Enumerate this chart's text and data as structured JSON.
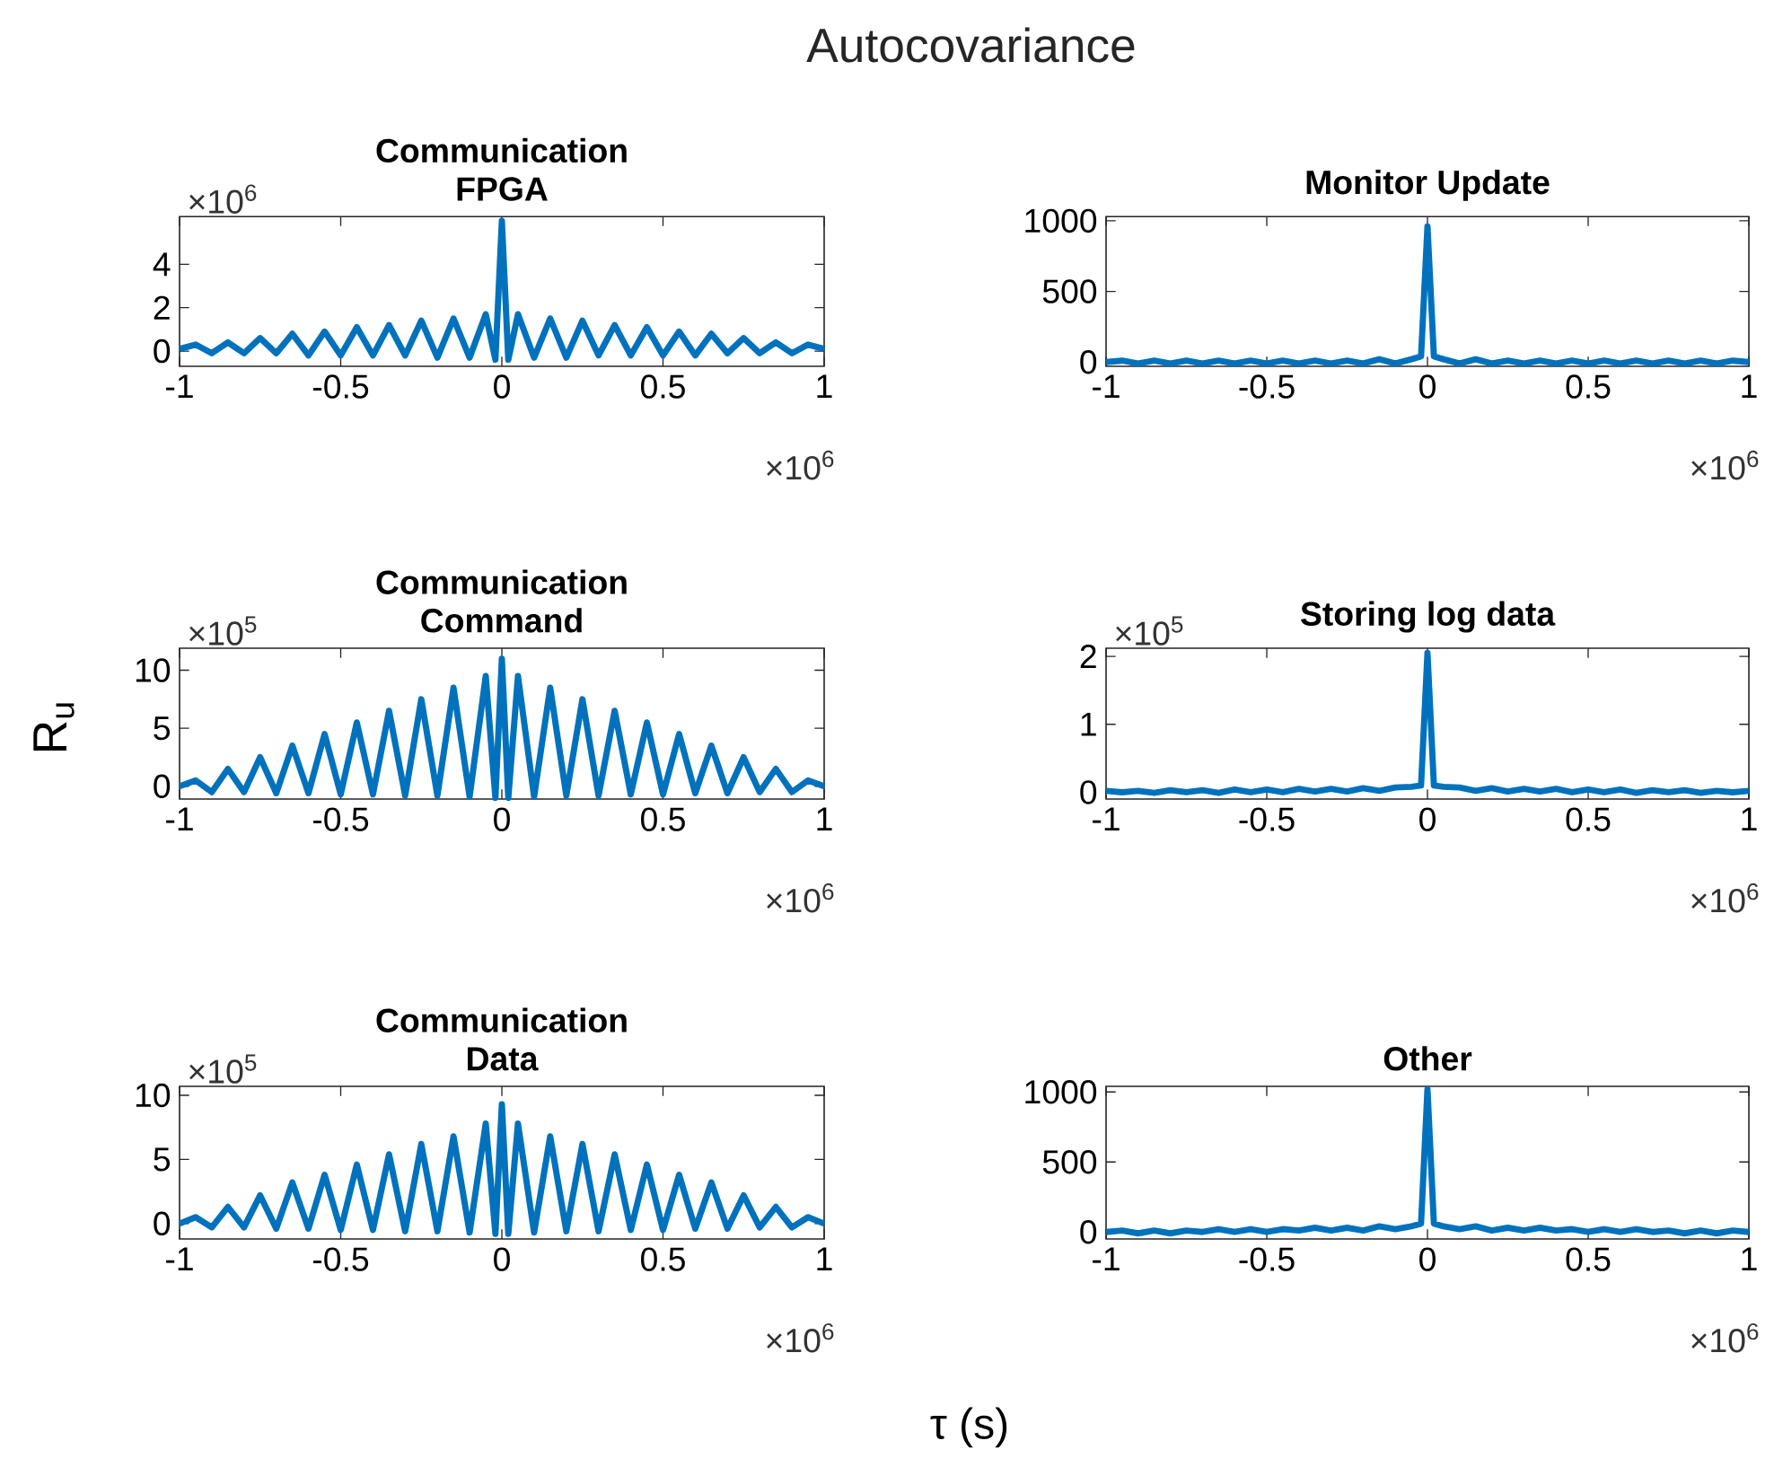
{
  "chart_data": [
    {
      "type": "line",
      "title": "Communication FPGA",
      "color": "#0072bd",
      "xlim": [
        -1,
        1
      ],
      "ylim": [
        -0.7,
        6.2
      ],
      "xticks": [
        -1,
        -0.5,
        0,
        0.5,
        1
      ],
      "yticks": [
        0,
        2,
        4
      ],
      "annotations": [
        "×10$^{6}$",
        "×10$^{6}$",
        "Autocovariance"
      ],
      "x": [
        -1,
        -0.95,
        -0.9,
        -0.85,
        -0.8,
        -0.75,
        -0.7,
        -0.65,
        -0.6,
        -0.55,
        -0.5,
        -0.45,
        -0.4,
        -0.35,
        -0.3,
        -0.25,
        -0.2,
        -0.15,
        -0.1,
        -0.05,
        -0.02,
        0,
        0.02,
        0.05,
        0.1,
        0.15,
        0.2,
        0.25,
        0.3,
        0.35,
        0.4,
        0.45,
        0.5,
        0.55,
        0.6,
        0.65,
        0.7,
        0.75,
        0.8,
        0.85,
        0.9,
        0.95,
        1
      ],
      "values": [
        0.1,
        0.3,
        -0.1,
        0.4,
        -0.1,
        0.6,
        -0.1,
        0.8,
        -0.2,
        0.9,
        -0.2,
        1.1,
        -0.2,
        1.2,
        -0.2,
        1.4,
        -0.3,
        1.5,
        -0.3,
        1.7,
        -0.4,
        6.0,
        -0.4,
        1.7,
        -0.3,
        1.5,
        -0.3,
        1.4,
        -0.2,
        1.2,
        -0.2,
        1.1,
        -0.2,
        0.9,
        -0.2,
        0.8,
        -0.1,
        0.6,
        -0.1,
        0.4,
        -0.1,
        0.3,
        0.1
      ]
    },
    {
      "type": "line",
      "title": "Monitor Update",
      "color": "#0072bd",
      "xlim": [
        -1,
        1
      ],
      "ylim": [
        -30,
        1030
      ],
      "xticks": [
        -1,
        -0.5,
        0,
        0.5,
        1
      ],
      "yticks": [
        0,
        500,
        1000
      ],
      "annotations": [
        "×10$^{6}$"
      ],
      "x": [
        -1,
        -0.95,
        -0.9,
        -0.85,
        -0.8,
        -0.75,
        -0.7,
        -0.65,
        -0.6,
        -0.55,
        -0.5,
        -0.45,
        -0.4,
        -0.35,
        -0.3,
        -0.25,
        -0.2,
        -0.15,
        -0.1,
        -0.05,
        -0.02,
        0,
        0.02,
        0.05,
        0.1,
        0.15,
        0.2,
        0.25,
        0.3,
        0.35,
        0.4,
        0.45,
        0.5,
        0.55,
        0.6,
        0.65,
        0.7,
        0.75,
        0.8,
        0.85,
        0.9,
        0.95,
        1
      ],
      "values": [
        0,
        10,
        -10,
        10,
        -10,
        10,
        -10,
        10,
        -10,
        10,
        -10,
        10,
        -10,
        10,
        -10,
        10,
        -10,
        20,
        -10,
        20,
        40,
        960,
        40,
        20,
        -10,
        20,
        -10,
        10,
        -10,
        10,
        -10,
        10,
        -10,
        10,
        -10,
        10,
        -10,
        10,
        -10,
        10,
        -10,
        10,
        0
      ]
    },
    {
      "type": "line",
      "title": "Communication Command",
      "ylabel": "R$_{u}$",
      "color": "#0072bd",
      "xlim": [
        -1,
        1
      ],
      "ylim": [
        -1.1,
        11.9
      ],
      "xticks": [
        -1,
        -0.5,
        0,
        0.5,
        1
      ],
      "yticks": [
        0,
        5,
        10
      ],
      "annotations": [
        "×10$^{5}$",
        "×10$^{6}$"
      ],
      "x": [
        -1,
        -0.95,
        -0.9,
        -0.85,
        -0.8,
        -0.75,
        -0.7,
        -0.65,
        -0.6,
        -0.55,
        -0.5,
        -0.45,
        -0.4,
        -0.35,
        -0.3,
        -0.25,
        -0.2,
        -0.15,
        -0.1,
        -0.05,
        -0.02,
        0,
        0.02,
        0.05,
        0.1,
        0.15,
        0.2,
        0.25,
        0.3,
        0.35,
        0.4,
        0.45,
        0.5,
        0.55,
        0.6,
        0.65,
        0.7,
        0.75,
        0.8,
        0.85,
        0.9,
        0.95,
        1
      ],
      "values": [
        0,
        0.5,
        -0.5,
        1.5,
        -0.5,
        2.5,
        -0.6,
        3.5,
        -0.6,
        4.5,
        -0.7,
        5.5,
        -0.7,
        6.5,
        -0.8,
        7.5,
        -0.8,
        8.5,
        -0.9,
        9.5,
        -1,
        11,
        -1,
        9.5,
        -0.9,
        8.5,
        -0.8,
        7.5,
        -0.8,
        6.5,
        -0.7,
        5.5,
        -0.7,
        4.5,
        -0.6,
        3.5,
        -0.6,
        2.5,
        -0.5,
        1.5,
        -0.5,
        0.5,
        0
      ]
    },
    {
      "type": "line",
      "title": "Storing log data",
      "color": "#0072bd",
      "xlim": [
        -1,
        1
      ],
      "ylim": [
        -0.1,
        2.12
      ],
      "xticks": [
        -1,
        -0.5,
        0,
        0.5,
        1
      ],
      "yticks": [
        0,
        1,
        2
      ],
      "annotations": [
        "×10$^{5}$",
        "×10$^{6}$"
      ],
      "x": [
        -1,
        -0.95,
        -0.9,
        -0.85,
        -0.8,
        -0.75,
        -0.7,
        -0.65,
        -0.6,
        -0.55,
        -0.5,
        -0.45,
        -0.4,
        -0.35,
        -0.3,
        -0.25,
        -0.2,
        -0.15,
        -0.1,
        -0.05,
        -0.02,
        0,
        0.02,
        0.05,
        0.1,
        0.15,
        0.2,
        0.25,
        0.3,
        0.35,
        0.4,
        0.45,
        0.5,
        0.55,
        0.6,
        0.65,
        0.7,
        0.75,
        0.8,
        0.85,
        0.9,
        0.95,
        1
      ],
      "values": [
        0.02,
        0,
        0.02,
        -0.01,
        0.03,
        0,
        0.03,
        -0.01,
        0.04,
        0,
        0.04,
        0,
        0.05,
        0.01,
        0.05,
        0.01,
        0.06,
        0.02,
        0.07,
        0.08,
        0.1,
        2.05,
        0.1,
        0.08,
        0.07,
        0.02,
        0.06,
        0.01,
        0.05,
        0.01,
        0.05,
        0,
        0.04,
        0,
        0.04,
        -0.01,
        0.03,
        0,
        0.03,
        -0.01,
        0.02,
        0,
        0.02
      ]
    },
    {
      "type": "line",
      "title": "Communication Data",
      "xlabel": "τ (s)",
      "color": "#0072bd",
      "xlim": [
        -1,
        1
      ],
      "ylim": [
        -1.2,
        10.7
      ],
      "xticks": [
        -1,
        -0.5,
        0,
        0.5,
        1
      ],
      "yticks": [
        0,
        5,
        10
      ],
      "annotations": [
        "×10$^{5}$",
        "×10$^{6}$"
      ],
      "x": [
        -1,
        -0.95,
        -0.9,
        -0.85,
        -0.8,
        -0.75,
        -0.7,
        -0.65,
        -0.6,
        -0.55,
        -0.5,
        -0.45,
        -0.4,
        -0.35,
        -0.3,
        -0.25,
        -0.2,
        -0.15,
        -0.1,
        -0.05,
        -0.02,
        0,
        0.02,
        0.05,
        0.1,
        0.15,
        0.2,
        0.25,
        0.3,
        0.35,
        0.4,
        0.45,
        0.5,
        0.55,
        0.6,
        0.65,
        0.7,
        0.75,
        0.8,
        0.85,
        0.9,
        0.95,
        1
      ],
      "values": [
        0,
        0.5,
        -0.3,
        1.3,
        -0.3,
        2.2,
        -0.4,
        3.2,
        -0.4,
        3.8,
        -0.5,
        4.6,
        -0.5,
        5.4,
        -0.6,
        6.2,
        -0.6,
        6.8,
        -0.7,
        7.8,
        -0.8,
        9.3,
        -0.8,
        7.8,
        -0.7,
        6.8,
        -0.6,
        6.2,
        -0.6,
        5.4,
        -0.5,
        4.6,
        -0.5,
        3.8,
        -0.4,
        3.2,
        -0.4,
        2.2,
        -0.3,
        1.3,
        -0.3,
        0.5,
        0
      ]
    },
    {
      "type": "line",
      "title": "Other",
      "color": "#0072bd",
      "xlim": [
        -1,
        1
      ],
      "ylim": [
        -50,
        1040
      ],
      "xticks": [
        -1,
        -0.5,
        0,
        0.5,
        1
      ],
      "yticks": [
        0,
        500,
        1000
      ],
      "annotations": [
        "×10$^{6}$"
      ],
      "x": [
        -1,
        -0.95,
        -0.9,
        -0.85,
        -0.8,
        -0.75,
        -0.7,
        -0.65,
        -0.6,
        -0.55,
        -0.5,
        -0.45,
        -0.4,
        -0.35,
        -0.3,
        -0.25,
        -0.2,
        -0.15,
        -0.1,
        -0.05,
        -0.02,
        0,
        0.02,
        0.05,
        0.1,
        0.15,
        0.2,
        0.25,
        0.3,
        0.35,
        0.4,
        0.45,
        0.5,
        0.55,
        0.6,
        0.65,
        0.7,
        0.75,
        0.8,
        0.85,
        0.9,
        0.95,
        1
      ],
      "values": [
        0,
        10,
        -10,
        10,
        -10,
        10,
        0,
        20,
        0,
        20,
        0,
        20,
        10,
        30,
        10,
        30,
        10,
        40,
        20,
        40,
        60,
        1020,
        60,
        40,
        20,
        40,
        10,
        30,
        10,
        30,
        10,
        20,
        0,
        20,
        0,
        20,
        0,
        10,
        -10,
        10,
        -10,
        10,
        0
      ]
    }
  ]
}
